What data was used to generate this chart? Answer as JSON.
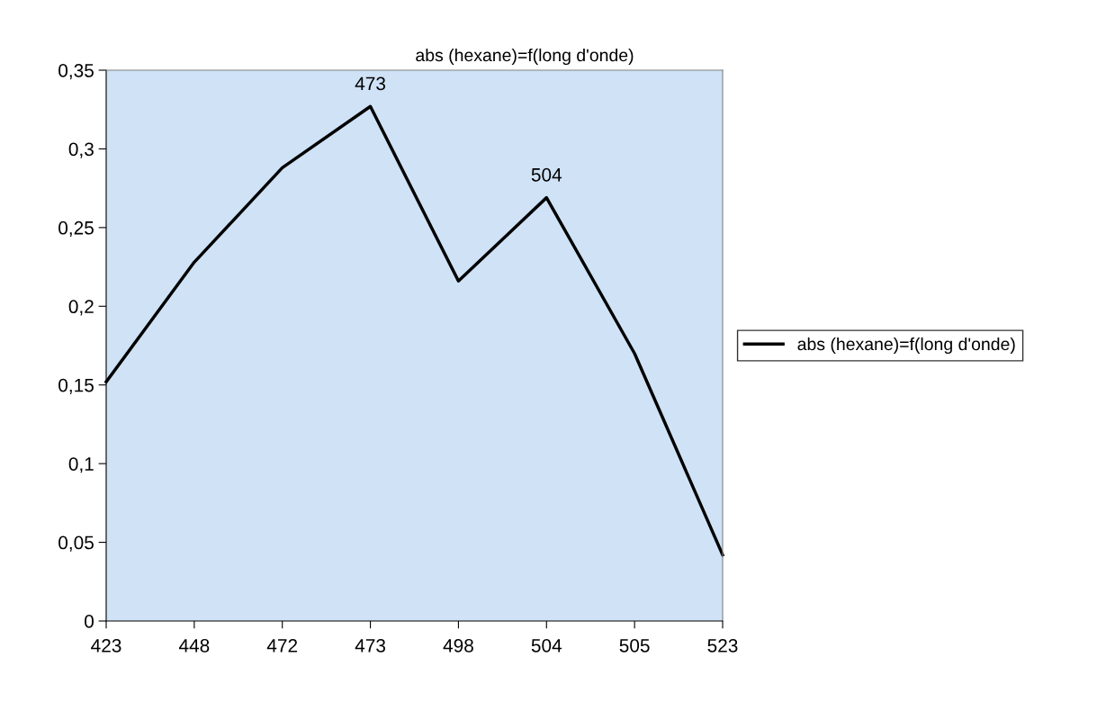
{
  "chart_data": {
    "type": "line",
    "title": "abs (hexane)=f(long d'onde)",
    "categories": [
      "423",
      "448",
      "472",
      "473",
      "498",
      "504",
      "505",
      "523"
    ],
    "series": [
      {
        "name": "abs (hexane)=f(long d'onde)",
        "color": "#000000",
        "values": [
          0.152,
          0.228,
          0.288,
          0.327,
          0.216,
          0.269,
          0.17,
          0.042
        ]
      }
    ],
    "ylim": [
      0,
      0.35
    ],
    "yticks": [
      0,
      {
        "value": 0.05,
        "label": "0,05"
      },
      {
        "value": 0.1,
        "label": "0,1"
      },
      {
        "value": 0.15,
        "label": "0,15"
      },
      {
        "value": 0.2,
        "label": "0,2"
      },
      {
        "value": 0.25,
        "label": "0,25"
      },
      {
        "value": 0.3,
        "label": "0,3"
      },
      {
        "value": 0.35,
        "label": "0,35"
      }
    ],
    "annotations": [
      {
        "text": "473",
        "x": "473",
        "y": 0.327
      },
      {
        "text": "504",
        "x": "504",
        "y": 0.269
      }
    ],
    "legend": "right",
    "grid": false,
    "marker": "none",
    "line_style": "solid"
  }
}
